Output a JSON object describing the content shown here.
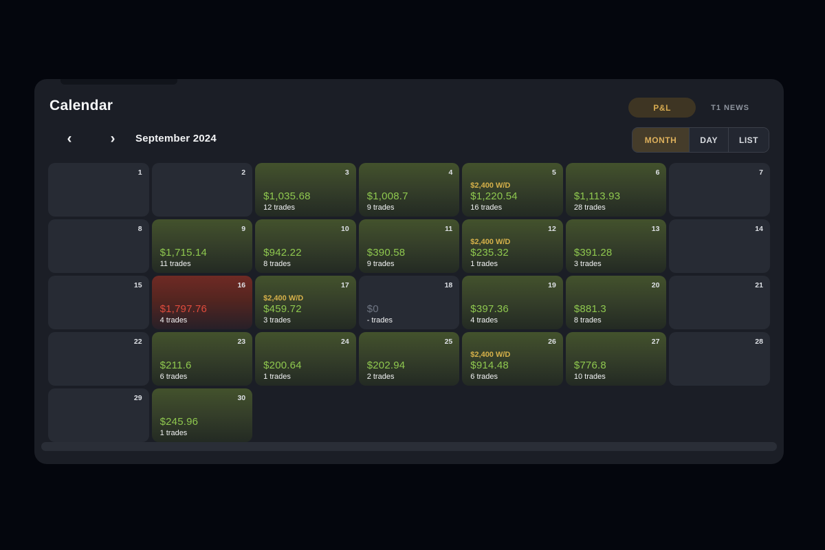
{
  "header": {
    "title": "Calendar",
    "pl_button_label": "P&L",
    "news_button_label": "T1 NEWS"
  },
  "nav": {
    "prev_icon": "‹",
    "next_icon": "›",
    "month_label": "September 2024",
    "views": [
      {
        "label": "MONTH",
        "active": true
      },
      {
        "label": "DAY",
        "active": false
      },
      {
        "label": "LIST",
        "active": false
      }
    ]
  },
  "colors": {
    "accent_gold": "#d6aa50",
    "withdrawal_yellow": "#d6b14a",
    "profit_green": "#8fc84f",
    "loss_red": "#e04b3c",
    "panel_bg": "#1b1e26",
    "cell_bg": "#272b34"
  },
  "calendar": {
    "days": [
      {
        "day": 1,
        "type": "empty"
      },
      {
        "day": 2,
        "type": "empty"
      },
      {
        "day": 3,
        "type": "profit",
        "amount": "$1,035.68",
        "trades": "12 trades"
      },
      {
        "day": 4,
        "type": "profit",
        "amount": "$1,008.7",
        "trades": "9 trades"
      },
      {
        "day": 5,
        "type": "profit",
        "wd": "$2,400 W/D",
        "amount": "$1,220.54",
        "trades": "16 trades"
      },
      {
        "day": 6,
        "type": "profit",
        "amount": "$1,113.93",
        "trades": "28 trades"
      },
      {
        "day": 7,
        "type": "empty"
      },
      {
        "day": 8,
        "type": "empty"
      },
      {
        "day": 9,
        "type": "profit",
        "amount": "$1,715.14",
        "trades": "11 trades"
      },
      {
        "day": 10,
        "type": "profit",
        "amount": "$942.22",
        "trades": "8 trades"
      },
      {
        "day": 11,
        "type": "profit",
        "amount": "$390.58",
        "trades": "9 trades"
      },
      {
        "day": 12,
        "type": "profit",
        "wd": "$2,400 W/D",
        "amount": "$235.32",
        "trades": "1 trades"
      },
      {
        "day": 13,
        "type": "profit",
        "amount": "$391.28",
        "trades": "3 trades"
      },
      {
        "day": 14,
        "type": "empty"
      },
      {
        "day": 15,
        "type": "empty"
      },
      {
        "day": 16,
        "type": "loss",
        "amount": "$1,797.76",
        "trades": "4 trades"
      },
      {
        "day": 17,
        "type": "profit",
        "wd": "$2,400 W/D",
        "amount": "$459.72",
        "trades": "3 trades"
      },
      {
        "day": 18,
        "type": "zero",
        "amount": "$0",
        "trades": "- trades"
      },
      {
        "day": 19,
        "type": "profit",
        "amount": "$397.36",
        "trades": "4 trades"
      },
      {
        "day": 20,
        "type": "profit",
        "amount": "$881.3",
        "trades": "8 trades"
      },
      {
        "day": 21,
        "type": "empty"
      },
      {
        "day": 22,
        "type": "empty"
      },
      {
        "day": 23,
        "type": "profit",
        "amount": "$211.6",
        "trades": "6 trades"
      },
      {
        "day": 24,
        "type": "profit",
        "amount": "$200.64",
        "trades": "1 trades"
      },
      {
        "day": 25,
        "type": "profit",
        "amount": "$202.94",
        "trades": "2 trades"
      },
      {
        "day": 26,
        "type": "profit",
        "wd": "$2,400 W/D",
        "amount": "$914.48",
        "trades": "6 trades"
      },
      {
        "day": 27,
        "type": "profit",
        "amount": "$776.8",
        "trades": "10 trades"
      },
      {
        "day": 28,
        "type": "empty"
      },
      {
        "day": 29,
        "type": "empty"
      },
      {
        "day": 30,
        "type": "profit",
        "amount": "$245.96",
        "trades": "1 trades"
      }
    ]
  }
}
